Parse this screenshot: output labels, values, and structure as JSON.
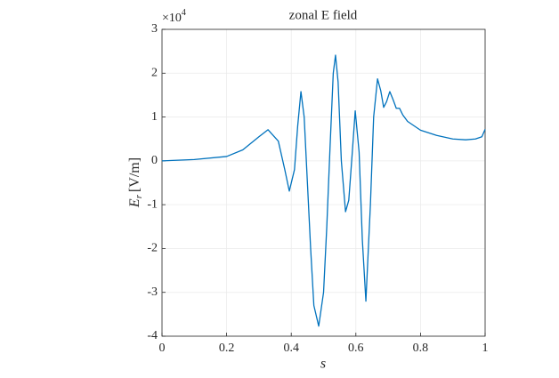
{
  "chart_data": {
    "type": "line",
    "title": "zonal E field",
    "xlabel": "s",
    "ylabel": "E",
    "ylabel_subscript": "r",
    "ylabel_unit": "[V/m]",
    "y_multiplier": "×10",
    "y_multiplier_exponent": "4",
    "x": [
      0,
      0.1,
      0.2,
      0.25,
      0.3,
      0.328,
      0.36,
      0.38,
      0.394,
      0.41,
      0.42,
      0.43,
      0.44,
      0.45,
      0.46,
      0.47,
      0.485,
      0.5,
      0.51,
      0.52,
      0.53,
      0.537,
      0.545,
      0.555,
      0.568,
      0.578,
      0.588,
      0.598,
      0.61,
      0.62,
      0.631,
      0.645,
      0.655,
      0.667,
      0.677,
      0.686,
      0.695,
      0.705,
      0.715,
      0.725,
      0.735,
      0.745,
      0.76,
      0.8,
      0.85,
      0.9,
      0.94,
      0.97,
      0.99,
      1.0
    ],
    "series": [
      {
        "name": "E_r",
        "color": "#0072bd",
        "values": [
          0,
          0.03,
          0.1,
          0.25,
          0.55,
          0.71,
          0.45,
          -0.2,
          -0.69,
          -0.2,
          0.8,
          1.58,
          1.0,
          -0.5,
          -2.0,
          -3.3,
          -3.77,
          -3.0,
          -1.5,
          0.3,
          2.0,
          2.41,
          1.8,
          0.0,
          -1.16,
          -0.9,
          0.1,
          1.14,
          0.2,
          -1.8,
          -3.2,
          -1.0,
          1.0,
          1.87,
          1.6,
          1.22,
          1.35,
          1.58,
          1.4,
          1.2,
          1.2,
          1.05,
          0.9,
          0.7,
          0.58,
          0.5,
          0.48,
          0.5,
          0.55,
          0.72
        ]
      }
    ],
    "xlim": [
      0,
      1
    ],
    "xticks": [
      0,
      0.2,
      0.4,
      0.6,
      0.8,
      1
    ],
    "ylim": [
      -4,
      3
    ],
    "yticks": [
      -4,
      -3,
      -2,
      -1,
      0,
      1,
      2,
      3
    ],
    "grid": true
  }
}
